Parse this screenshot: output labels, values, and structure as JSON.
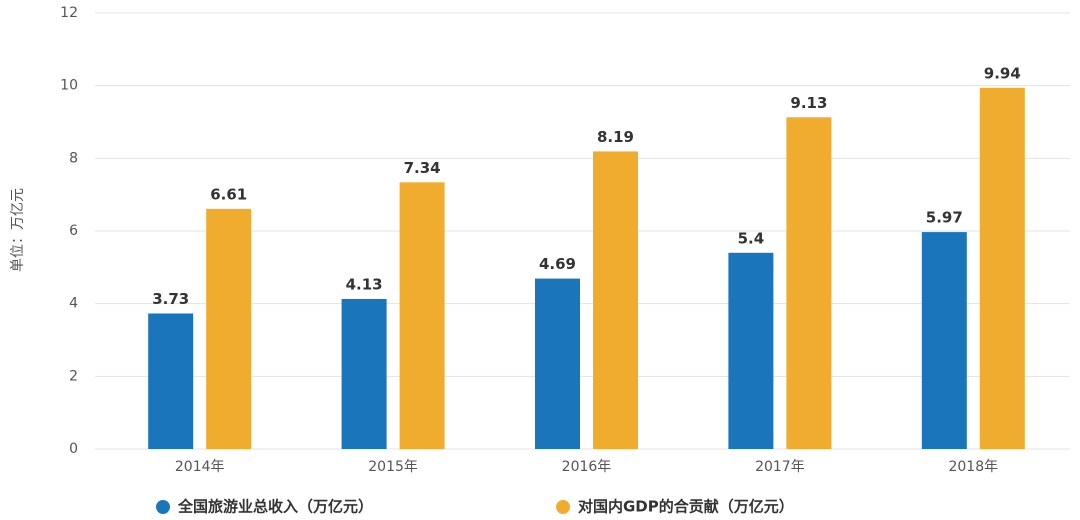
{
  "chart_data": {
    "type": "bar",
    "y_label": "单位：万亿元",
    "categories": [
      "2014年",
      "2015年",
      "2016年",
      "2017年",
      "2018年"
    ],
    "series": [
      {
        "name": "全国旅游业总收入（万亿元）",
        "color": "#1b75bb",
        "values": [
          3.73,
          4.13,
          4.69,
          5.4,
          5.97
        ]
      },
      {
        "name": "对国内GDP的合贡献（万亿元）",
        "color": "#efac2e",
        "values": [
          6.61,
          7.34,
          8.19,
          9.13,
          9.94
        ]
      }
    ],
    "ylim": [
      0,
      12
    ],
    "yticks": [
      0,
      2,
      4,
      6,
      8,
      10,
      12
    ],
    "grid": true,
    "legend": "bottom"
  }
}
